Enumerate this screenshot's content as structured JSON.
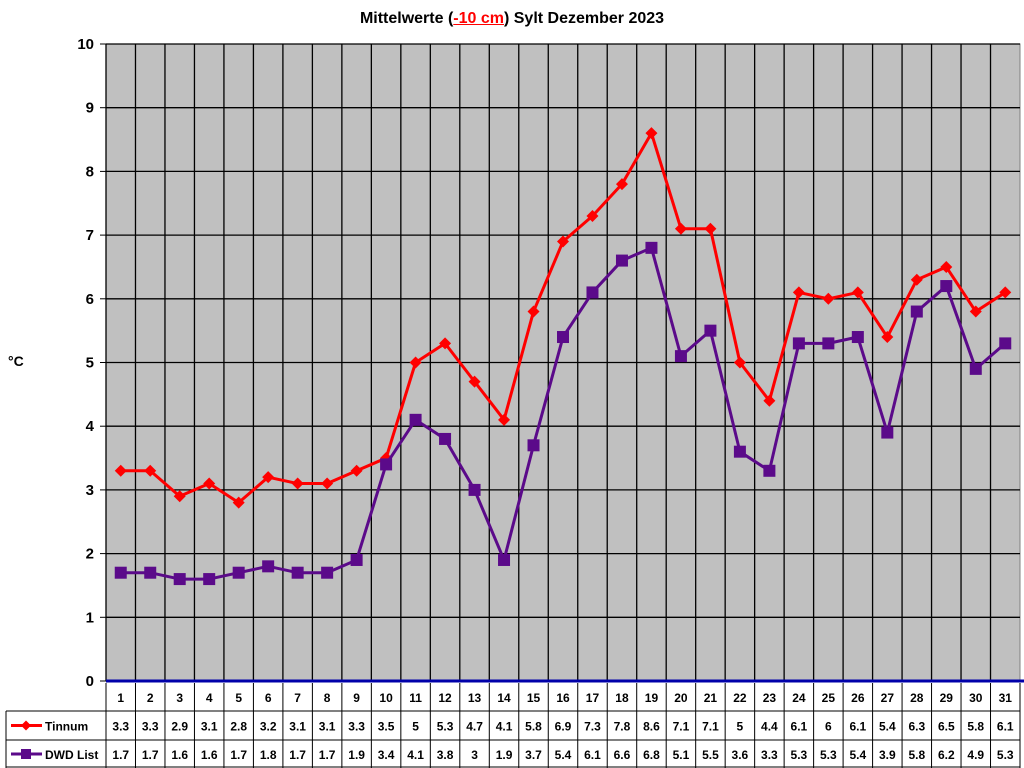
{
  "title": {
    "prefix": "Mittelwerte (",
    "highlight": "-10 cm",
    "suffix": ") Sylt Dezember 2023"
  },
  "colors": {
    "plot_bg": "#c0c0c0",
    "grid": "#000000",
    "axis_zero": "#0000aa",
    "series_tinnum": "#ff0000",
    "series_dwd": "#5b0a8a"
  },
  "chart_data": {
    "type": "line",
    "title": "Mittelwerte (-10 cm) Sylt Dezember 2023",
    "xlabel": "",
    "ylabel": "°C",
    "ylim": [
      0,
      10
    ],
    "yticks": [
      0,
      1,
      2,
      3,
      4,
      5,
      6,
      7,
      8,
      9,
      10
    ],
    "grid": true,
    "legend_position": "data-table",
    "categories": [
      "1",
      "2",
      "3",
      "4",
      "5",
      "6",
      "7",
      "8",
      "9",
      "10",
      "11",
      "12",
      "13",
      "14",
      "15",
      "16",
      "17",
      "18",
      "19",
      "20",
      "21",
      "22",
      "23",
      "24",
      "25",
      "26",
      "27",
      "28",
      "29",
      "30",
      "31"
    ],
    "series": [
      {
        "name": "Tinnum",
        "marker": "diamond",
        "values": [
          3.3,
          3.3,
          2.9,
          3.1,
          2.8,
          3.2,
          3.1,
          3.1,
          3.3,
          3.5,
          5,
          5.3,
          4.7,
          4.1,
          5.8,
          6.9,
          7.3,
          7.8,
          8.6,
          7.1,
          7.1,
          5,
          4.4,
          6.1,
          6,
          6.1,
          5.4,
          6.3,
          6.5,
          5.8,
          6.1
        ]
      },
      {
        "name": "DWD List",
        "marker": "square",
        "values": [
          1.7,
          1.7,
          1.6,
          1.6,
          1.7,
          1.8,
          1.7,
          1.7,
          1.9,
          3.4,
          4.1,
          3.8,
          3,
          1.9,
          3.7,
          5.4,
          6.1,
          6.6,
          6.8,
          5.1,
          5.5,
          3.6,
          3.3,
          5.3,
          5.3,
          5.4,
          3.9,
          5.8,
          6.2,
          4.9,
          5.3
        ]
      }
    ]
  }
}
